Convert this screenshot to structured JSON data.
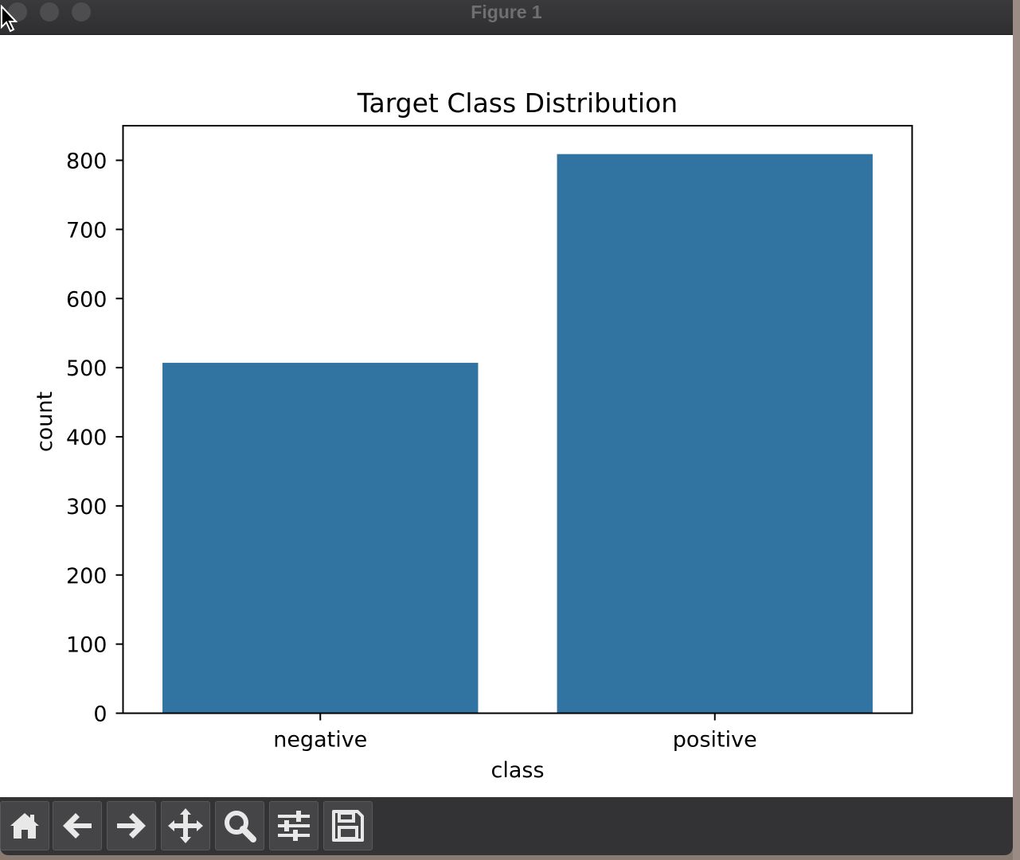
{
  "window": {
    "title": "Figure 1"
  },
  "toolbar": {
    "buttons": [
      {
        "name": "home-button",
        "icon": "home-icon"
      },
      {
        "name": "back-button",
        "icon": "arrow-left-icon"
      },
      {
        "name": "forward-button",
        "icon": "arrow-right-icon"
      },
      {
        "name": "pan-button",
        "icon": "move-icon"
      },
      {
        "name": "zoom-button",
        "icon": "magnifier-icon"
      },
      {
        "name": "configure-subplots-button",
        "icon": "sliders-icon"
      },
      {
        "name": "save-button",
        "icon": "floppy-disk-icon"
      }
    ]
  },
  "chart_data": {
    "type": "bar",
    "title": "Target Class Distribution",
    "xlabel": "class",
    "ylabel": "count",
    "categories": [
      "negative",
      "positive"
    ],
    "values": [
      507,
      809
    ],
    "ylim": [
      0,
      850
    ],
    "yticks": [
      0,
      100,
      200,
      300,
      400,
      500,
      600,
      700,
      800
    ],
    "bar_color": "#3274a1",
    "grid": false
  }
}
